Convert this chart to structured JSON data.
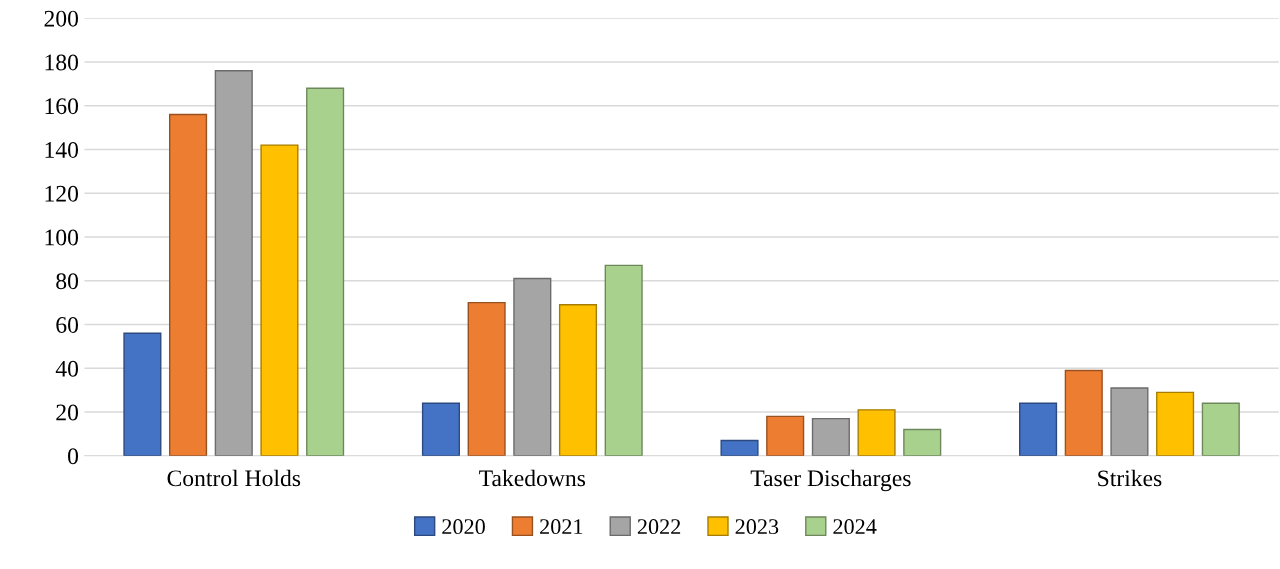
{
  "chart_data": {
    "type": "bar",
    "categories": [
      "Control Holds",
      "Takedowns",
      "Taser Discharges",
      "Strikes"
    ],
    "series": [
      {
        "name": "2020",
        "color": "#4472c4",
        "values": [
          56,
          24,
          7,
          24
        ]
      },
      {
        "name": "2021",
        "color": "#ed7d31",
        "values": [
          156,
          70,
          18,
          39
        ]
      },
      {
        "name": "2022",
        "color": "#a5a5a5",
        "values": [
          176,
          81,
          17,
          31
        ]
      },
      {
        "name": "2023",
        "color": "#ffc000",
        "values": [
          142,
          69,
          21,
          29
        ]
      },
      {
        "name": "2024",
        "color": "#a9d18e",
        "values": [
          168,
          87,
          12,
          24
        ]
      }
    ],
    "ylim": [
      0,
      200
    ],
    "yticks": [
      0,
      20,
      40,
      60,
      80,
      100,
      120,
      140,
      160,
      180,
      200
    ],
    "grid": "y",
    "legend": "bottom"
  }
}
